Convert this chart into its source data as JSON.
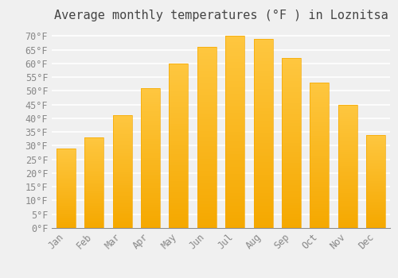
{
  "title": "Average monthly temperatures (°F ) in Loznitsa",
  "months": [
    "Jan",
    "Feb",
    "Mar",
    "Apr",
    "May",
    "Jun",
    "Jul",
    "Aug",
    "Sep",
    "Oct",
    "Nov",
    "Dec"
  ],
  "values": [
    29,
    33,
    41,
    51,
    60,
    66,
    70,
    69,
    62,
    53,
    45,
    34
  ],
  "bar_color_top": "#FEC740",
  "bar_color_bottom": "#F5A800",
  "background_color": "#F0F0F0",
  "grid_color": "#FFFFFF",
  "ylabel_ticks": [
    "0°F",
    "5°F",
    "10°F",
    "15°F",
    "20°F",
    "25°F",
    "30°F",
    "35°F",
    "40°F",
    "45°F",
    "50°F",
    "55°F",
    "60°F",
    "65°F",
    "70°F"
  ],
  "ytick_values": [
    0,
    5,
    10,
    15,
    20,
    25,
    30,
    35,
    40,
    45,
    50,
    55,
    60,
    65,
    70
  ],
  "ylim": [
    0,
    73
  ],
  "title_fontsize": 11,
  "tick_fontsize": 8.5,
  "title_color": "#444444",
  "tick_color": "#888888",
  "bar_width": 0.68
}
